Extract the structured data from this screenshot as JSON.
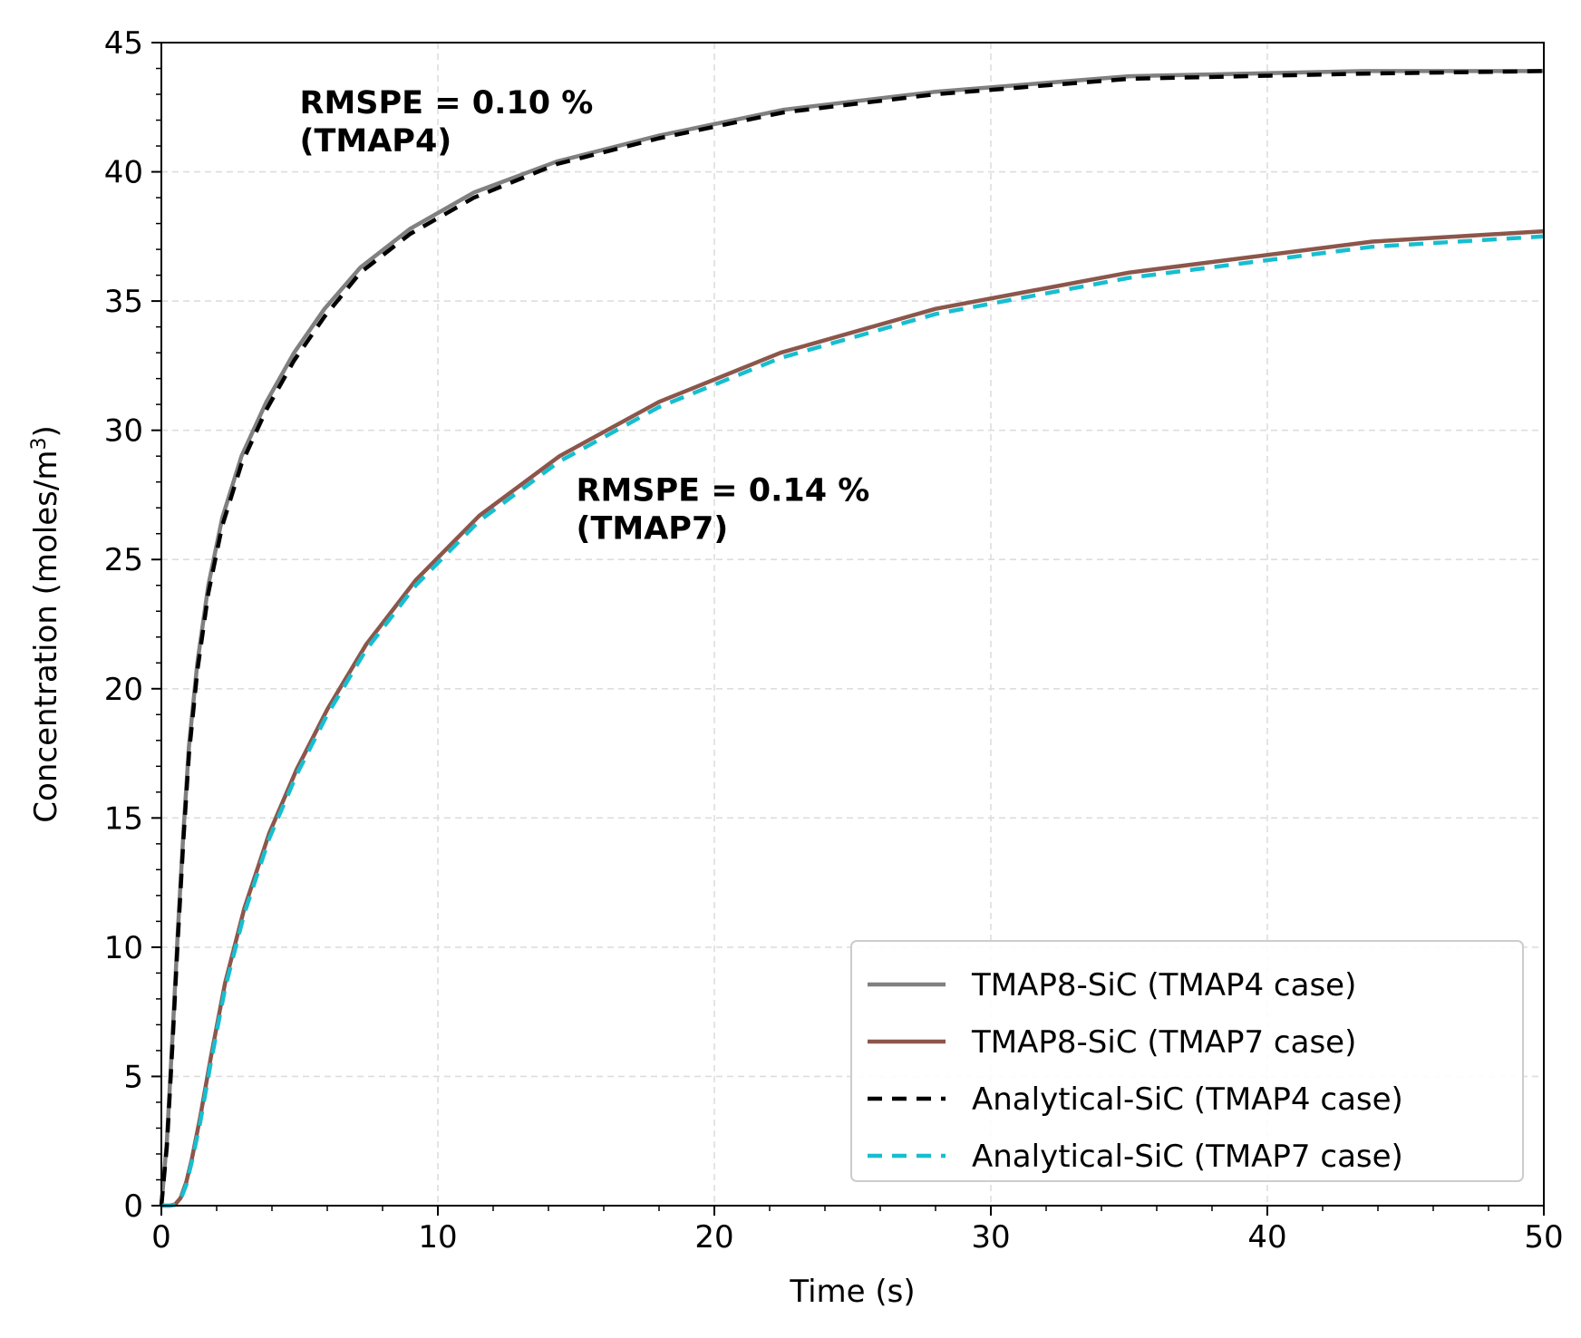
{
  "chart_data": {
    "type": "line",
    "xlabel": "Time (s)",
    "ylabel": "Concentration (moles/m",
    "ylabel_sup": "3",
    "ylabel_close": ")",
    "xlim": [
      0,
      50
    ],
    "ylim": [
      0,
      45
    ],
    "xticks": [
      0,
      10,
      20,
      30,
      40,
      50
    ],
    "yticks": [
      0,
      5,
      10,
      15,
      20,
      25,
      30,
      35,
      40,
      45
    ],
    "grid": true,
    "legend_position": "lower-right",
    "annotations": [
      {
        "line1": "RMSPE = 0.10 %",
        "line2": "(TMAP4)",
        "x": 5.0,
        "y": 41.5
      },
      {
        "line1": "RMSPE = 0.14 %",
        "line2": "(TMAP7)",
        "x": 15.0,
        "y": 26.5
      }
    ],
    "series": [
      {
        "name": "TMAP8-SiC (TMAP4 case)",
        "color": "#808080",
        "dash": "solid",
        "x": [
          0,
          0.2,
          0.4,
          0.6,
          0.8,
          1.0,
          1.3,
          1.7,
          2.2,
          2.9,
          3.8,
          4.8,
          5.9,
          7.2,
          9.0,
          11.3,
          14.3,
          18.0,
          22.5,
          28.0,
          35.0,
          43.5,
          50.0
        ],
        "y": [
          0,
          2.5,
          6.5,
          10.7,
          14.5,
          17.8,
          21.0,
          24.0,
          26.6,
          29.0,
          31.1,
          33.0,
          34.7,
          36.3,
          37.8,
          39.2,
          40.4,
          41.4,
          42.4,
          43.1,
          43.7,
          43.9,
          43.9
        ]
      },
      {
        "name": "TMAP8-SiC (TMAP7 case)",
        "color": "#8c564b",
        "dash": "solid",
        "x": [
          0,
          0.3,
          0.5,
          0.7,
          0.9,
          1.1,
          1.4,
          1.8,
          2.3,
          3.0,
          3.9,
          4.9,
          6.0,
          7.4,
          9.2,
          11.5,
          14.4,
          18.0,
          22.4,
          28.0,
          35.0,
          43.8,
          50.0
        ],
        "y": [
          0,
          0,
          0.05,
          0.3,
          0.9,
          1.8,
          3.4,
          5.8,
          8.6,
          11.5,
          14.4,
          16.9,
          19.2,
          21.7,
          24.2,
          26.7,
          29.0,
          31.1,
          33.0,
          34.7,
          36.1,
          37.3,
          37.7
        ]
      },
      {
        "name": "Analytical-SiC (TMAP4 case)",
        "color": "#000000",
        "dash": "dashed",
        "x": [
          0,
          0.2,
          0.4,
          0.6,
          0.8,
          1.0,
          1.3,
          1.7,
          2.2,
          2.9,
          3.8,
          4.8,
          5.9,
          7.2,
          9.0,
          11.3,
          14.3,
          18.0,
          22.5,
          28.0,
          35.0,
          43.5,
          50.0
        ],
        "y": [
          0,
          2.3,
          6.2,
          10.4,
          14.2,
          17.5,
          20.7,
          23.7,
          26.3,
          28.7,
          30.8,
          32.7,
          34.4,
          36.1,
          37.6,
          39.0,
          40.3,
          41.3,
          42.3,
          43.0,
          43.6,
          43.8,
          43.9
        ]
      },
      {
        "name": "Analytical-SiC (TMAP7 case)",
        "color": "#17becf",
        "dash": "dashed",
        "x": [
          0,
          0.3,
          0.5,
          0.7,
          0.9,
          1.1,
          1.4,
          1.8,
          2.3,
          3.0,
          3.9,
          4.9,
          6.0,
          7.4,
          9.2,
          11.5,
          14.4,
          18.0,
          22.4,
          28.0,
          35.0,
          43.8,
          50.0
        ],
        "y": [
          0,
          0,
          0.03,
          0.25,
          0.8,
          1.7,
          3.2,
          5.6,
          8.4,
          11.3,
          14.2,
          16.7,
          19.0,
          21.5,
          24.0,
          26.5,
          28.8,
          30.9,
          32.8,
          34.5,
          35.9,
          37.1,
          37.5
        ]
      }
    ]
  }
}
